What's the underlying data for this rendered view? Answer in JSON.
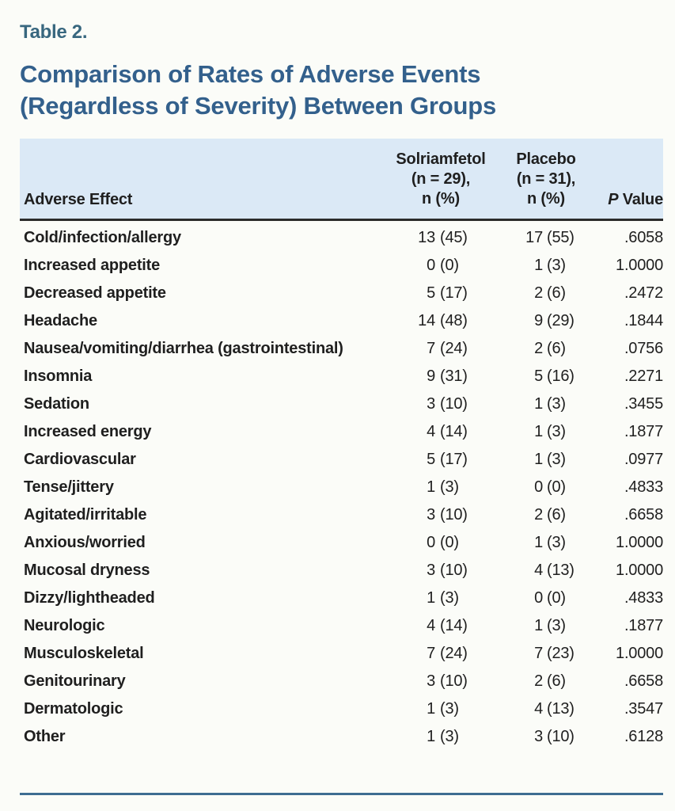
{
  "page": {
    "table_label": "Table 2.",
    "title_line1": "Comparison of Rates of Adverse Events",
    "title_line2": "(Regardless of Severity) Between Groups"
  },
  "table": {
    "header": {
      "adverse_effect": "Adverse Effect",
      "solriamfetol_lines": [
        "Solriamfetol",
        "(n = 29),",
        "n (%)"
      ],
      "placebo_lines": [
        "Placebo",
        "(n = 31),",
        "n (%)"
      ],
      "p_italic": "P",
      "p_rest": " Value"
    },
    "rows": [
      {
        "effect": "Cold/infection/allergy",
        "sol_n": "13",
        "sol_pct": "(45)",
        "pla_n": "17",
        "pla_pct": "(55)",
        "p": ".6058"
      },
      {
        "effect": "Increased appetite",
        "sol_n": "0",
        "sol_pct": "(0)",
        "pla_n": "1",
        "pla_pct": "(3)",
        "p": "1.0000"
      },
      {
        "effect": "Decreased appetite",
        "sol_n": "5",
        "sol_pct": "(17)",
        "pla_n": "2",
        "pla_pct": "(6)",
        "p": ".2472"
      },
      {
        "effect": "Headache",
        "sol_n": "14",
        "sol_pct": "(48)",
        "pla_n": "9",
        "pla_pct": "(29)",
        "p": ".1844"
      },
      {
        "effect": "Nausea/vomiting/diarrhea (gastrointestinal)",
        "sol_n": "7",
        "sol_pct": "(24)",
        "pla_n": "2",
        "pla_pct": "(6)",
        "p": ".0756"
      },
      {
        "effect": "Insomnia",
        "sol_n": "9",
        "sol_pct": "(31)",
        "pla_n": "5",
        "pla_pct": "(16)",
        "p": ".2271"
      },
      {
        "effect": "Sedation",
        "sol_n": "3",
        "sol_pct": "(10)",
        "pla_n": "1",
        "pla_pct": "(3)",
        "p": ".3455"
      },
      {
        "effect": "Increased energy",
        "sol_n": "4",
        "sol_pct": "(14)",
        "pla_n": "1",
        "pla_pct": "(3)",
        "p": ".1877"
      },
      {
        "effect": "Cardiovascular",
        "sol_n": "5",
        "sol_pct": "(17)",
        "pla_n": "1",
        "pla_pct": "(3)",
        "p": ".0977"
      },
      {
        "effect": "Tense/jittery",
        "sol_n": "1",
        "sol_pct": "(3)",
        "pla_n": "0",
        "pla_pct": "(0)",
        "p": ".4833"
      },
      {
        "effect": "Agitated/irritable",
        "sol_n": "3",
        "sol_pct": "(10)",
        "pla_n": "2",
        "pla_pct": "(6)",
        "p": ".6658"
      },
      {
        "effect": "Anxious/worried",
        "sol_n": "0",
        "sol_pct": "(0)",
        "pla_n": "1",
        "pla_pct": "(3)",
        "p": "1.0000"
      },
      {
        "effect": "Mucosal dryness",
        "sol_n": "3",
        "sol_pct": "(10)",
        "pla_n": "4",
        "pla_pct": "(13)",
        "p": "1.0000"
      },
      {
        "effect": "Dizzy/lightheaded",
        "sol_n": "1",
        "sol_pct": "(3)",
        "pla_n": "0",
        "pla_pct": "(0)",
        "p": ".4833"
      },
      {
        "effect": "Neurologic",
        "sol_n": "4",
        "sol_pct": "(14)",
        "pla_n": "1",
        "pla_pct": "(3)",
        "p": ".1877"
      },
      {
        "effect": "Musculoskeletal",
        "sol_n": "7",
        "sol_pct": "(24)",
        "pla_n": "7",
        "pla_pct": "(23)",
        "p": "1.0000"
      },
      {
        "effect": "Genitourinary",
        "sol_n": "3",
        "sol_pct": "(10)",
        "pla_n": "2",
        "pla_pct": "(6)",
        "p": ".6658"
      },
      {
        "effect": "Dermatologic",
        "sol_n": "1",
        "sol_pct": "(3)",
        "pla_n": "4",
        "pla_pct": "(13)",
        "p": ".3547"
      },
      {
        "effect": "Other",
        "sol_n": "1",
        "sol_pct": "(3)",
        "pla_n": "3",
        "pla_pct": "(10)",
        "p": ".6128"
      }
    ]
  },
  "colors": {
    "title_blue": "#33608c",
    "table_label_teal": "#38677f",
    "header_background": "#dbe9f6",
    "header_rule_dark": "#2b2b2b",
    "bottom_rule_blue": "#3e6d92",
    "body_text": "#1f1f1f",
    "page_background": "#fbfcf8"
  }
}
